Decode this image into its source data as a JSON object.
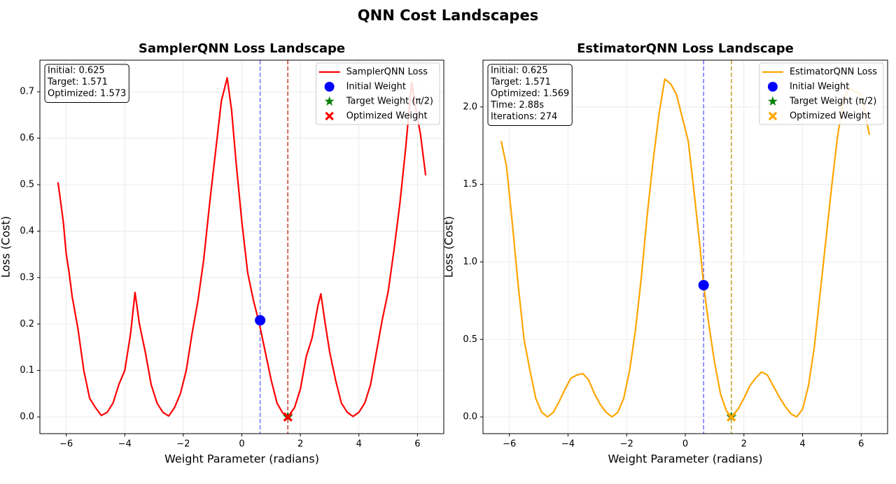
{
  "title": "QNN Cost Landscapes",
  "chart_data": [
    {
      "type": "line",
      "title": "SamplerQNN Loss Landscape",
      "xlabel": "Weight Parameter (radians)",
      "ylabel": "Loss (Cost)",
      "xlim": [
        -6.9,
        6.9
      ],
      "ylim": [
        -0.036,
        0.768
      ],
      "xticks": [
        {
          "value": -6,
          "label": "−6"
        },
        {
          "value": -4,
          "label": "−4"
        },
        {
          "value": -2,
          "label": "−2"
        },
        0,
        2,
        4,
        6
      ],
      "yticks": [
        {
          "value": 0,
          "label": "0.0"
        },
        0.1,
        0.2,
        0.3,
        0.4,
        0.5,
        0.6,
        0.7
      ],
      "grid": true,
      "legend": "upper right",
      "info_text": [
        "Initial: 0.625",
        "Target: 1.571",
        "Optimized: 1.573"
      ],
      "series": [
        {
          "name": "SamplerQNN Loss",
          "color": "#ff0000",
          "x": [
            -6.28,
            -6.1,
            -6.0,
            -5.9,
            -5.8,
            -5.6,
            -5.4,
            -5.2,
            -5.0,
            -4.8,
            -4.6,
            -4.4,
            -4.2,
            -4.0,
            -3.8,
            -3.65,
            -3.5,
            -3.3,
            -3.1,
            -2.9,
            -2.7,
            -2.5,
            -2.3,
            -2.1,
            -1.9,
            -1.7,
            -1.5,
            -1.3,
            -1.1,
            -0.9,
            -0.7,
            -0.5,
            -0.35,
            -0.2,
            0.0,
            0.2,
            0.4,
            0.6,
            0.8,
            1.0,
            1.2,
            1.4,
            1.57,
            1.8,
            2.0,
            2.2,
            2.4,
            2.6,
            2.7,
            2.85,
            3.0,
            3.2,
            3.4,
            3.6,
            3.8,
            4.0,
            4.2,
            4.4,
            4.6,
            4.8,
            5.0,
            5.2,
            5.4,
            5.6,
            5.8,
            5.95,
            6.1,
            6.28
          ],
          "values": [
            0.505,
            0.42,
            0.35,
            0.31,
            0.26,
            0.19,
            0.1,
            0.04,
            0.02,
            0.003,
            0.01,
            0.03,
            0.07,
            0.1,
            0.18,
            0.268,
            0.2,
            0.14,
            0.07,
            0.03,
            0.01,
            0.002,
            0.02,
            0.05,
            0.1,
            0.18,
            0.25,
            0.34,
            0.46,
            0.57,
            0.68,
            0.73,
            0.66,
            0.55,
            0.42,
            0.31,
            0.25,
            0.2,
            0.14,
            0.08,
            0.03,
            0.008,
            0.0,
            0.02,
            0.06,
            0.13,
            0.17,
            0.24,
            0.265,
            0.2,
            0.14,
            0.08,
            0.03,
            0.01,
            0.001,
            0.01,
            0.03,
            0.07,
            0.14,
            0.21,
            0.27,
            0.36,
            0.46,
            0.58,
            0.72,
            0.66,
            0.61,
            0.52
          ]
        }
      ],
      "points": [
        {
          "name": "Initial Weight",
          "color": "#0000ff",
          "marker": "circle",
          "x": 0.625,
          "y": 0.208,
          "guide_color": "#7b7bff"
        },
        {
          "name": "Target Weight (π/2)",
          "color": "#008000",
          "marker": "star",
          "x": 1.571,
          "y": 0.0,
          "guide_color": "#c84a3a"
        },
        {
          "name": "Optimized Weight",
          "color": "#ff0000",
          "marker": "x",
          "x": 1.573,
          "y": 0.0
        }
      ]
    },
    {
      "type": "line",
      "title": "EstimatorQNN Loss Landscape",
      "xlabel": "Weight Parameter (radians)",
      "ylabel": "Loss (Cost)",
      "xlim": [
        -6.9,
        6.9
      ],
      "ylim": [
        -0.108,
        2.302
      ],
      "xticks": [
        {
          "value": -6,
          "label": "−6"
        },
        {
          "value": -4,
          "label": "−4"
        },
        {
          "value": -2,
          "label": "−2"
        },
        0,
        2,
        4,
        6
      ],
      "yticks": [
        {
          "value": 0,
          "label": "0.0"
        },
        0.5,
        {
          "value": 1,
          "label": "1.0"
        },
        1.5,
        {
          "value": 2,
          "label": "2.0"
        }
      ],
      "grid": true,
      "legend": "upper right",
      "info_text": [
        "Initial: 0.625",
        "Target: 1.571",
        "Optimized: 1.569",
        "Time: 2.88s",
        "Iterations: 274"
      ],
      "series": [
        {
          "name": "EstimatorQNN Loss",
          "color": "#ffa500",
          "x": [
            -6.28,
            -6.1,
            -5.9,
            -5.7,
            -5.5,
            -5.3,
            -5.1,
            -4.9,
            -4.7,
            -4.5,
            -4.3,
            -4.1,
            -3.9,
            -3.7,
            -3.5,
            -3.3,
            -3.1,
            -2.9,
            -2.7,
            -2.5,
            -2.3,
            -2.1,
            -1.9,
            -1.7,
            -1.5,
            -1.3,
            -1.1,
            -0.9,
            -0.7,
            -0.5,
            -0.3,
            -0.1,
            0.1,
            0.3,
            0.5,
            0.625,
            0.8,
            1.0,
            1.2,
            1.4,
            1.57,
            1.8,
            2.0,
            2.2,
            2.4,
            2.6,
            2.8,
            3.0,
            3.2,
            3.4,
            3.6,
            3.8,
            4.0,
            4.2,
            4.4,
            4.6,
            4.8,
            5.0,
            5.2,
            5.4,
            5.6,
            5.8,
            6.0,
            6.28
          ],
          "values": [
            1.78,
            1.62,
            1.25,
            0.85,
            0.5,
            0.3,
            0.12,
            0.03,
            0.0,
            0.03,
            0.1,
            0.18,
            0.25,
            0.27,
            0.28,
            0.24,
            0.15,
            0.08,
            0.03,
            0.0,
            0.03,
            0.12,
            0.3,
            0.56,
            0.9,
            1.3,
            1.65,
            1.95,
            2.18,
            2.15,
            2.08,
            1.93,
            1.78,
            1.45,
            1.1,
            0.85,
            0.6,
            0.35,
            0.15,
            0.04,
            0.0,
            0.05,
            0.12,
            0.2,
            0.25,
            0.29,
            0.27,
            0.2,
            0.13,
            0.07,
            0.02,
            0.0,
            0.05,
            0.2,
            0.45,
            0.8,
            1.15,
            1.5,
            1.82,
            2.05,
            2.12,
            2.1,
            2.08,
            1.82
          ]
        }
      ],
      "points": [
        {
          "name": "Initial Weight",
          "color": "#0000ff",
          "marker": "circle",
          "x": 0.625,
          "y": 0.85,
          "guide_color": "#7b7bff"
        },
        {
          "name": "Target Weight (π/2)",
          "color": "#008000",
          "marker": "star",
          "x": 1.571,
          "y": 0.0,
          "guide_color": "#c8a43a"
        },
        {
          "name": "Optimized Weight",
          "color": "#ffa500",
          "marker": "x",
          "x": 1.569,
          "y": 0.0
        }
      ]
    }
  ]
}
